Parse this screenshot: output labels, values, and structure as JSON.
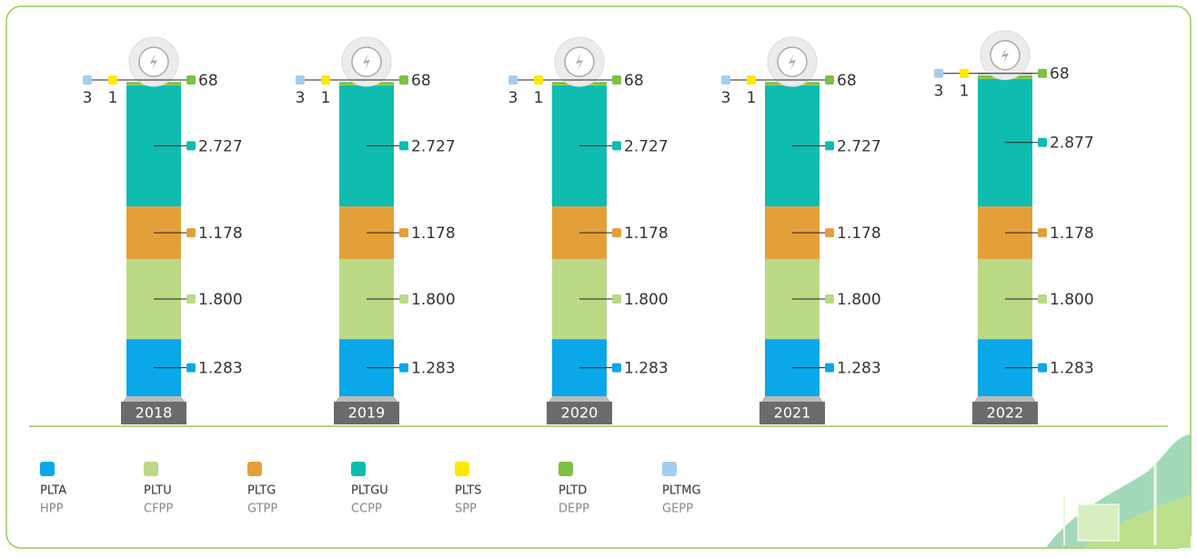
{
  "chart_data": {
    "type": "stacked-bar",
    "categories": [
      "2018",
      "2019",
      "2020",
      "2021",
      "2022"
    ],
    "series": [
      {
        "name": "PLTA",
        "subname": "HPP",
        "color": "#0aa8e8",
        "values": [
          1283,
          1283,
          1283,
          1283,
          1283
        ],
        "value_labels": [
          "1.283",
          "1.283",
          "1.283",
          "1.283",
          "1.283"
        ]
      },
      {
        "name": "PLTU",
        "subname": "CFPP",
        "color": "#bcd986",
        "values": [
          1800,
          1800,
          1800,
          1800,
          1800
        ],
        "value_labels": [
          "1.800",
          "1.800",
          "1.800",
          "1.800",
          "1.800"
        ]
      },
      {
        "name": "PLTG",
        "subname": "GTPP",
        "color": "#e4a038",
        "values": [
          1178,
          1178,
          1178,
          1178,
          1178
        ],
        "value_labels": [
          "1.178",
          "1.178",
          "1.178",
          "1.178",
          "1.178"
        ]
      },
      {
        "name": "PLTGU",
        "subname": "CCPP",
        "color": "#0ebcb0",
        "values": [
          2727,
          2727,
          2727,
          2727,
          2877
        ],
        "value_labels": [
          "2.727",
          "2.727",
          "2.727",
          "2.727",
          "2.877"
        ]
      },
      {
        "name": "PLTS",
        "subname": "SPP",
        "color": "#ffe800",
        "values": [
          1,
          1,
          1,
          1,
          1
        ]
      },
      {
        "name": "PLTD",
        "subname": "DEPP",
        "color": "#7dc142",
        "values": [
          68,
          68,
          68,
          68,
          68
        ]
      },
      {
        "name": "PLTMG",
        "subname": "GEPP",
        "color": "#a6cdee",
        "values": [
          3,
          3,
          3,
          3,
          3
        ]
      }
    ]
  }
}
